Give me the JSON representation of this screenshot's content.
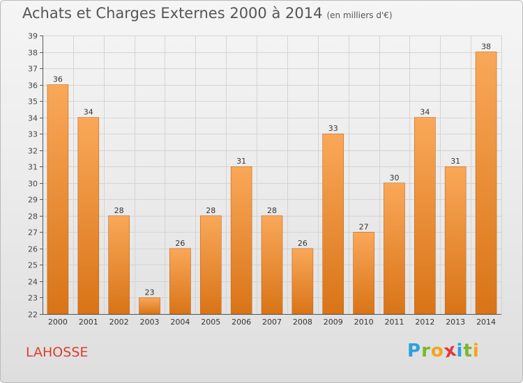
{
  "title": "Achats et Charges Externes 2000 à 2014",
  "subtitle": "(en milliers d'€)",
  "place_label": "LAHOSSE",
  "logo": {
    "letters": [
      "P",
      "r",
      "o",
      "x",
      "i",
      "t",
      "i"
    ],
    "colors": [
      "#2aa2dd",
      "#78b828",
      "#f7a21b",
      "#e43a3a",
      "#2aa2dd",
      "#78b828",
      "#f7a21b"
    ]
  },
  "colors": {
    "bar_light": "#f9a859",
    "bar_dark": "#d97417",
    "bar_edge": "#c46514",
    "grid": "#d4d4d4",
    "axis": "#555555",
    "title": "#555555",
    "place": "#d9402f"
  },
  "chart_data": {
    "type": "bar",
    "categories": [
      "2000",
      "2001",
      "2002",
      "2003",
      "2004",
      "2005",
      "2006",
      "2007",
      "2008",
      "2009",
      "2010",
      "2011",
      "2012",
      "2013",
      "2014"
    ],
    "values": [
      36,
      34,
      28,
      23,
      26,
      28,
      31,
      28,
      26,
      33,
      27,
      30,
      34,
      31,
      38
    ],
    "ylim": [
      22,
      39
    ],
    "yticks": [
      22,
      23,
      24,
      25,
      26,
      27,
      28,
      29,
      30,
      31,
      32,
      33,
      34,
      35,
      36,
      37,
      38,
      39
    ],
    "grid": true,
    "data_labels": true
  }
}
